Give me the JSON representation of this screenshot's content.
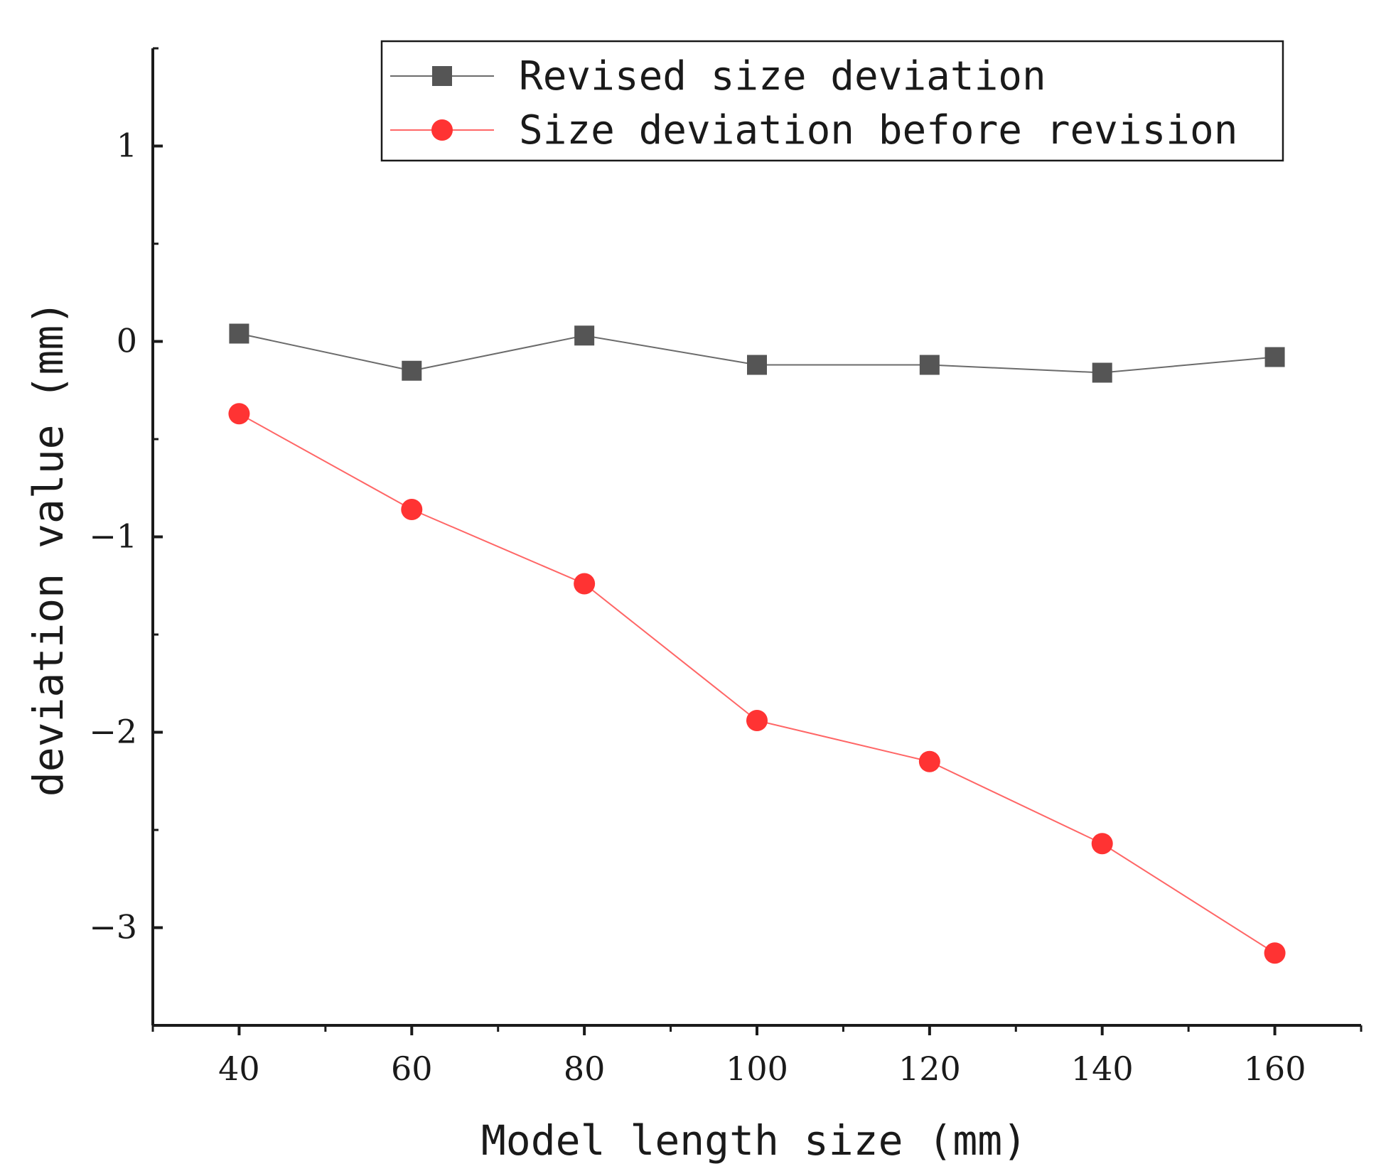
{
  "chart_data": {
    "type": "line",
    "title": "",
    "xlabel": "Model length size (mm)",
    "ylabel": "deviation value (mm)",
    "xlim": [
      30,
      170
    ],
    "ylim": [
      -3.5,
      1.5
    ],
    "xticks": [
      40,
      60,
      80,
      100,
      120,
      140,
      160
    ],
    "yticks": [
      1,
      0,
      -1,
      -2,
      -3
    ],
    "grid": false,
    "legend_position": "top-right",
    "x": [
      40,
      60,
      80,
      100,
      120,
      140,
      160
    ],
    "series": [
      {
        "name": "Revised size deviation",
        "values": [
          0.04,
          -0.15,
          0.03,
          -0.12,
          -0.12,
          -0.16,
          -0.08
        ],
        "color": "#555555",
        "line_color": "#6b6b6b",
        "marker": "square"
      },
      {
        "name": "Size deviation before revision",
        "values": [
          -0.37,
          -0.86,
          -1.24,
          -1.94,
          -2.15,
          -2.57,
          -3.13
        ],
        "color": "#ff3333",
        "line_color": "#ff6666",
        "marker": "circle"
      }
    ]
  }
}
